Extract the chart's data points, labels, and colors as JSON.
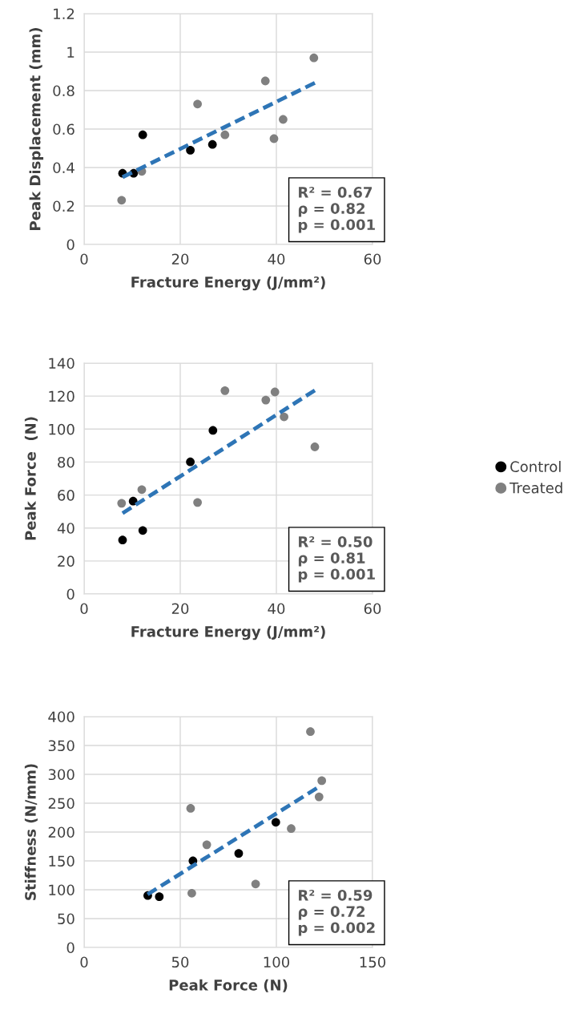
{
  "chart_data": [
    {
      "type": "scatter",
      "xlabel": "Fracture Energy (J/mm²)",
      "ylabel": "Peak Displacement (mm)",
      "xlim": [
        0,
        60
      ],
      "xticks": [
        0,
        20,
        40,
        60
      ],
      "ylim": [
        0,
        1.2
      ],
      "yticks": [
        0,
        0.2,
        0.4,
        0.6,
        0.8,
        1,
        1.2
      ],
      "grid": true,
      "legend": false,
      "annotations": [
        "R² = 0.67",
        "ρ = 0.82",
        "p = 0.001"
      ],
      "series": [
        {
          "marker": "circle",
          "color": "#000000",
          "x": [
            8.0,
            10.3,
            12.2,
            22.1,
            26.7
          ],
          "values": [
            0.37,
            0.37,
            0.57,
            0.49,
            0.52
          ]
        },
        {
          "marker": "circle",
          "color": "#808080",
          "x": [
            7.8,
            12.0,
            23.6,
            29.3,
            37.7,
            39.5,
            41.4,
            47.8
          ],
          "values": [
            0.23,
            0.38,
            0.73,
            0.57,
            0.85,
            0.55,
            0.65,
            0.97
          ]
        },
        {
          "type": "line",
          "line_style": "dashed",
          "color": "#2e75b6",
          "x": [
            8,
            48
          ],
          "values": [
            0.35,
            0.84
          ]
        }
      ]
    },
    {
      "type": "scatter",
      "xlabel": "Fracture Energy (J/mm²)",
      "ylabel": "Peak Force  (N)",
      "xlim": [
        0,
        60
      ],
      "xticks": [
        0,
        20,
        40,
        60
      ],
      "ylim": [
        0,
        140
      ],
      "yticks": [
        0,
        20,
        40,
        60,
        80,
        100,
        120,
        140
      ],
      "grid": true,
      "legend": "right",
      "annotations": [
        "R² = 0.50",
        "ρ = 0.81",
        "p = 0.001"
      ],
      "series": [
        {
          "name": "Control",
          "marker": "circle",
          "color": "#000000",
          "x": [
            8.0,
            10.2,
            12.2,
            22.1,
            26.8
          ],
          "values": [
            32.7,
            56.3,
            38.5,
            80.1,
            99.2
          ]
        },
        {
          "name": "Treated",
          "marker": "circle",
          "color": "#808080",
          "x": [
            7.8,
            12.0,
            23.6,
            29.3,
            37.8,
            39.7,
            41.6,
            48.0
          ],
          "values": [
            55.0,
            63.3,
            55.5,
            123.3,
            117.6,
            122.5,
            107.4,
            89.2
          ]
        },
        {
          "type": "line",
          "line_style": "dashed",
          "color": "#2e75b6",
          "x": [
            8,
            48
          ],
          "values": [
            49,
            123.5
          ]
        }
      ]
    },
    {
      "type": "scatter",
      "xlabel": "Peak Force (N)",
      "ylabel": "Stiffness (N/mm)",
      "xlim": [
        0,
        150
      ],
      "xticks": [
        0,
        50,
        100,
        150
      ],
      "ylim": [
        0,
        400
      ],
      "yticks": [
        0,
        50,
        100,
        150,
        200,
        250,
        300,
        350,
        400
      ],
      "grid": true,
      "legend": false,
      "annotations": [
        "R² = 0.59",
        "ρ = 0.72",
        "p = 0.002"
      ],
      "series": [
        {
          "marker": "circle",
          "color": "#000000",
          "x": [
            33.1,
            39.1,
            56.6,
            80.4,
            99.7
          ],
          "values": [
            90,
            88,
            150,
            163,
            217
          ]
        },
        {
          "marker": "circle",
          "color": "#808080",
          "x": [
            55.4,
            56.0,
            63.8,
            89.2,
            107.7,
            117.7,
            122.2,
            123.6
          ],
          "values": [
            241,
            94,
            178,
            110,
            206,
            374,
            261,
            289
          ]
        },
        {
          "type": "line",
          "line_style": "dashed",
          "color": "#2e75b6",
          "x": [
            33,
            121
          ],
          "values": [
            92,
            276
          ]
        }
      ]
    }
  ]
}
